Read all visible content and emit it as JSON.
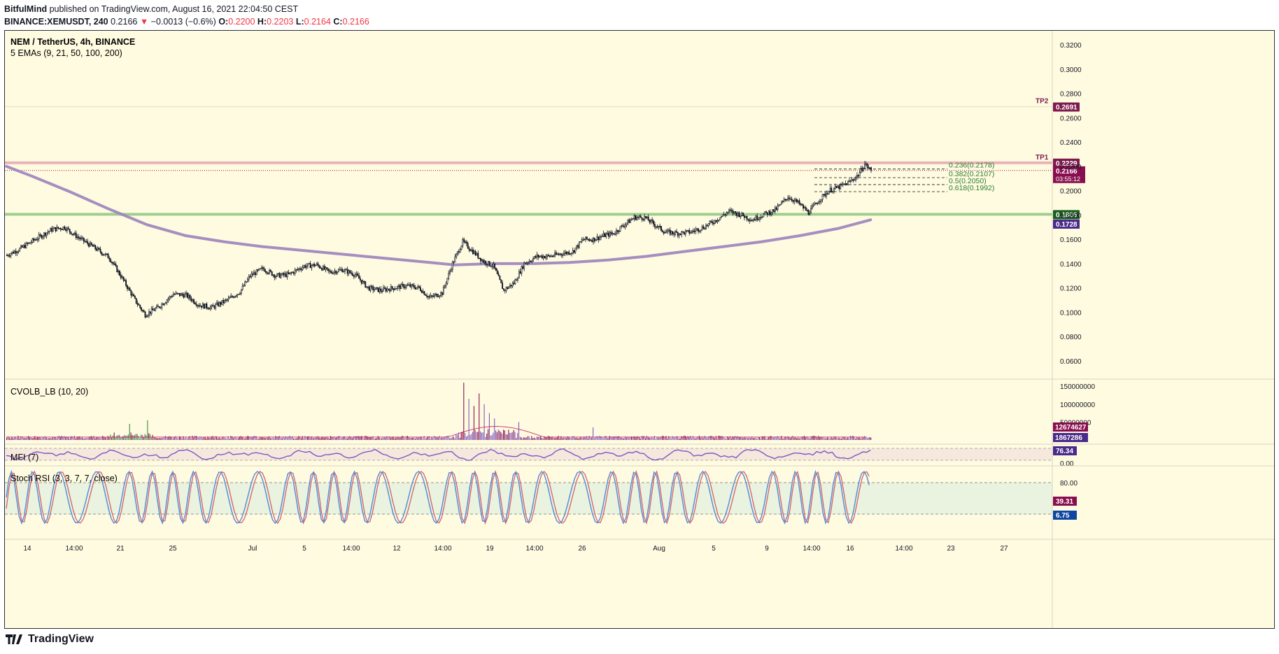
{
  "header": {
    "author": "BitfulMind",
    "published": "published on TradingView.com, August 16, 2021 22:04:50 CEST",
    "symbol": "BINANCE:XEMUSDT, 240",
    "last": "0.2166",
    "arrow": "▼",
    "change": "−0.0013 (−0.6%)",
    "o_label": "O:",
    "o": "0.2200",
    "h_label": "H:",
    "h": "0.2203",
    "l_label": "L:",
    "l": "0.2164",
    "c_label": "C:",
    "c": "0.2166"
  },
  "footer": {
    "brand": "TradingView"
  },
  "colors": {
    "background": "#fffbe0",
    "up": "#ffffff",
    "down": "#131722",
    "ema200": "#9c82bd",
    "resistance": "#e8b4b8",
    "support": "#9fce8f",
    "tp": "#7d1a4e",
    "fib": "#2e7d32",
    "volume_up": "#388e3c",
    "volume_down": "#880e4f",
    "volume_neutral": "#7e57c2",
    "stoch_k": "#5b8fd6",
    "stoch_d": "#d4606a",
    "mfi": "#7e57c2"
  },
  "chart_data": {
    "type": "candlestick",
    "title": "NEM / TetherUS, 4h, BINANCE",
    "indicator_label": "5 EMAs (9, 21, 50, 100, 200)",
    "y_ticks": [
      "0.3200",
      "0.3000",
      "0.2800",
      "0.2600",
      "0.2400",
      "0.2200",
      "0.2000",
      "0.1800",
      "0.1600",
      "0.1400",
      "0.1200",
      "0.1000",
      "0.0800",
      "0.0600"
    ],
    "ylim": [
      0.05,
      0.33
    ],
    "x_ticks": [
      "14",
      "14:00",
      "21",
      "25",
      "Jul",
      "5",
      "14:00",
      "12",
      "14:00",
      "19",
      "14:00",
      "26",
      "Aug",
      "5",
      "9",
      "14:00",
      "16",
      "14:00",
      "23",
      "27"
    ],
    "close_path": [
      [
        0,
        0.147
      ],
      [
        10,
        0.152
      ],
      [
        22,
        0.16
      ],
      [
        35,
        0.168
      ],
      [
        45,
        0.17
      ],
      [
        55,
        0.162
      ],
      [
        70,
        0.152
      ],
      [
        80,
        0.145
      ],
      [
        90,
        0.128
      ],
      [
        100,
        0.11
      ],
      [
        108,
        0.098
      ],
      [
        118,
        0.104
      ],
      [
        130,
        0.115
      ],
      [
        140,
        0.114
      ],
      [
        150,
        0.106
      ],
      [
        160,
        0.104
      ],
      [
        172,
        0.11
      ],
      [
        182,
        0.117
      ],
      [
        190,
        0.13
      ],
      [
        200,
        0.136
      ],
      [
        210,
        0.13
      ],
      [
        220,
        0.131
      ],
      [
        232,
        0.138
      ],
      [
        242,
        0.139
      ],
      [
        252,
        0.133
      ],
      [
        262,
        0.135
      ],
      [
        272,
        0.131
      ],
      [
        282,
        0.12
      ],
      [
        292,
        0.118
      ],
      [
        302,
        0.12
      ],
      [
        312,
        0.122
      ],
      [
        322,
        0.12
      ],
      [
        330,
        0.112
      ],
      [
        340,
        0.116
      ],
      [
        348,
        0.14
      ],
      [
        356,
        0.158
      ],
      [
        364,
        0.15
      ],
      [
        372,
        0.142
      ],
      [
        380,
        0.138
      ],
      [
        388,
        0.118
      ],
      [
        396,
        0.124
      ],
      [
        404,
        0.14
      ],
      [
        414,
        0.146
      ],
      [
        424,
        0.146
      ],
      [
        432,
        0.148
      ],
      [
        442,
        0.15
      ],
      [
        450,
        0.16
      ],
      [
        458,
        0.16
      ],
      [
        466,
        0.163
      ],
      [
        474,
        0.165
      ],
      [
        482,
        0.172
      ],
      [
        490,
        0.178
      ],
      [
        498,
        0.178
      ],
      [
        506,
        0.172
      ],
      [
        514,
        0.166
      ],
      [
        524,
        0.165
      ],
      [
        534,
        0.166
      ],
      [
        544,
        0.17
      ],
      [
        554,
        0.176
      ],
      [
        564,
        0.183
      ],
      [
        574,
        0.18
      ],
      [
        582,
        0.176
      ],
      [
        590,
        0.18
      ],
      [
        600,
        0.184
      ],
      [
        610,
        0.195
      ],
      [
        618,
        0.19
      ],
      [
        626,
        0.182
      ],
      [
        634,
        0.192
      ],
      [
        642,
        0.2
      ],
      [
        650,
        0.203
      ],
      [
        658,
        0.207
      ],
      [
        665,
        0.213
      ],
      [
        670,
        0.222
      ],
      [
        675,
        0.2166
      ]
    ],
    "ema200_path": [
      [
        0,
        0.22
      ],
      [
        20,
        0.212
      ],
      [
        50,
        0.199
      ],
      [
        80,
        0.185
      ],
      [
        110,
        0.172
      ],
      [
        140,
        0.163
      ],
      [
        170,
        0.158
      ],
      [
        200,
        0.154
      ],
      [
        230,
        0.151
      ],
      [
        260,
        0.148
      ],
      [
        290,
        0.145
      ],
      [
        320,
        0.142
      ],
      [
        350,
        0.139
      ],
      [
        380,
        0.14
      ],
      [
        410,
        0.14
      ],
      [
        440,
        0.141
      ],
      [
        470,
        0.143
      ],
      [
        500,
        0.146
      ],
      [
        530,
        0.15
      ],
      [
        560,
        0.154
      ],
      [
        590,
        0.158
      ],
      [
        620,
        0.163
      ],
      [
        650,
        0.169
      ],
      [
        675,
        0.176
      ]
    ],
    "bar_count": 676,
    "levels": [
      {
        "name": "TP2",
        "label": "TP2",
        "value": 0.2691,
        "price_text": "0.2691"
      },
      {
        "name": "TP1",
        "label": "TP1",
        "value": 0.2229,
        "price_text": "0.2229"
      },
      {
        "name": "support",
        "value": 0.1806,
        "price_text": "0.1806"
      }
    ],
    "fib_levels": [
      {
        "label": "0.236(0.2178)",
        "value": 0.2178
      },
      {
        "label": "0.382(0.2107)",
        "value": 0.2107
      },
      {
        "label": "0.5(0.2050)",
        "value": 0.205
      },
      {
        "label": "0.618(0.1992)",
        "value": 0.1992
      }
    ],
    "price_badges": {
      "last": "0.2166",
      "countdown": "03:55:12",
      "ema200": "0.1728"
    },
    "volume": {
      "label": "CVOLB_LB (10, 20)",
      "y_ticks": [
        "150000000",
        "100000000",
        "50000000"
      ],
      "ylim": [
        0,
        170000000
      ],
      "badge_1": "12674627",
      "badge_2": "1867286",
      "spikes": [
        {
          "bar": 357,
          "value": 160000000
        },
        {
          "bar": 361,
          "value": 115000000
        },
        {
          "bar": 365,
          "value": 95000000
        },
        {
          "bar": 369,
          "value": 130000000
        },
        {
          "bar": 373,
          "value": 100000000
        },
        {
          "bar": 377,
          "value": 75000000
        },
        {
          "bar": 381,
          "value": 60000000
        },
        {
          "bar": 110,
          "value": 55000000
        },
        {
          "bar": 96,
          "value": 45000000
        },
        {
          "bar": 400,
          "value": 50000000
        },
        {
          "bar": 458,
          "value": 35000000
        }
      ]
    },
    "mfi": {
      "label": "MFI (7)",
      "y_ticks": [
        "0.00"
      ],
      "value_badge": "76.34"
    },
    "stoch_rsi": {
      "label": "Stoch RSI (3, 3, 7, 7, close)",
      "y_ticks": [
        "80.00"
      ],
      "k_badge": "39.31",
      "d_badge": "6.75"
    }
  }
}
